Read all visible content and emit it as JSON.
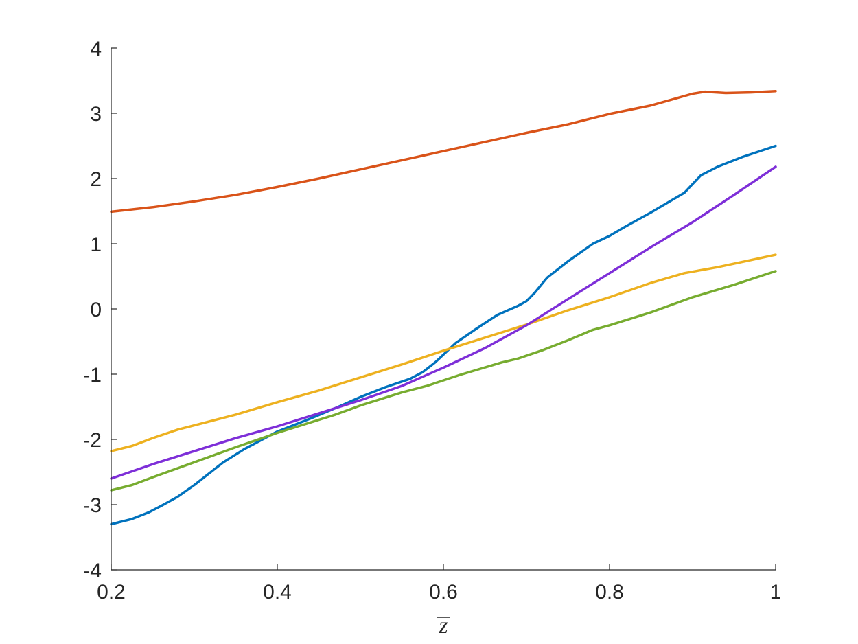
{
  "chart_data": {
    "type": "line",
    "xlabel": "z",
    "ylabel": "",
    "xlim": [
      0.2,
      1
    ],
    "ylim": [
      -4,
      4
    ],
    "xticks": [
      "0.2",
      "0.4",
      "0.6",
      "0.8",
      "1"
    ],
    "yticks": [
      "4",
      "3",
      "2",
      "1",
      "0",
      "-1",
      "-2",
      "-3",
      "-4"
    ],
    "grid": false,
    "series": [
      {
        "color": "#0072BD",
        "x": [
          0.2,
          0.225,
          0.245,
          0.26,
          0.28,
          0.3,
          0.335,
          0.36,
          0.4,
          0.44,
          0.47,
          0.5,
          0.53,
          0.56,
          0.575,
          0.59,
          0.615,
          0.64,
          0.665,
          0.69,
          0.7,
          0.71,
          0.725,
          0.75,
          0.78,
          0.8,
          0.82,
          0.85,
          0.89,
          0.91,
          0.93,
          0.96,
          1.0
        ],
        "values": [
          -3.3,
          -3.22,
          -3.12,
          -3.02,
          -2.88,
          -2.7,
          -2.35,
          -2.15,
          -1.88,
          -1.68,
          -1.52,
          -1.35,
          -1.2,
          -1.07,
          -0.97,
          -0.82,
          -0.52,
          -0.3,
          -0.09,
          0.05,
          0.12,
          0.25,
          0.48,
          0.73,
          1.0,
          1.12,
          1.27,
          1.48,
          1.78,
          2.05,
          2.18,
          2.33,
          2.5
        ]
      },
      {
        "color": "#D95319",
        "x": [
          0.2,
          0.25,
          0.3,
          0.35,
          0.4,
          0.45,
          0.5,
          0.55,
          0.6,
          0.65,
          0.7,
          0.75,
          0.8,
          0.85,
          0.9,
          0.915,
          0.94,
          0.97,
          1.0
        ],
        "values": [
          1.49,
          1.56,
          1.65,
          1.75,
          1.87,
          2.0,
          2.14,
          2.28,
          2.42,
          2.56,
          2.7,
          2.83,
          2.99,
          3.12,
          3.3,
          3.33,
          3.31,
          3.32,
          3.34
        ]
      },
      {
        "color": "#EDB120",
        "x": [
          0.2,
          0.225,
          0.25,
          0.28,
          0.35,
          0.4,
          0.45,
          0.5,
          0.55,
          0.6,
          0.65,
          0.7,
          0.75,
          0.8,
          0.85,
          0.89,
          0.93,
          1.0
        ],
        "values": [
          -2.18,
          -2.1,
          -1.98,
          -1.85,
          -1.62,
          -1.43,
          -1.25,
          -1.05,
          -0.85,
          -0.64,
          -0.44,
          -0.24,
          -0.02,
          0.18,
          0.4,
          0.55,
          0.64,
          0.83
        ]
      },
      {
        "color": "#77AC30",
        "x": [
          0.2,
          0.225,
          0.25,
          0.3,
          0.35,
          0.4,
          0.47,
          0.5,
          0.55,
          0.58,
          0.62,
          0.67,
          0.69,
          0.72,
          0.75,
          0.78,
          0.8,
          0.85,
          0.9,
          0.95,
          1.0
        ],
        "values": [
          -2.78,
          -2.7,
          -2.58,
          -2.35,
          -2.12,
          -1.9,
          -1.62,
          -1.48,
          -1.28,
          -1.18,
          -1.01,
          -0.82,
          -0.76,
          -0.63,
          -0.48,
          -0.32,
          -0.25,
          -0.05,
          0.18,
          0.37,
          0.58
        ]
      },
      {
        "color": "#7E2FD8",
        "x": [
          0.2,
          0.25,
          0.3,
          0.35,
          0.4,
          0.45,
          0.5,
          0.55,
          0.6,
          0.65,
          0.7,
          0.75,
          0.8,
          0.85,
          0.9,
          0.95,
          1.0
        ],
        "values": [
          -2.6,
          -2.38,
          -2.18,
          -1.98,
          -1.8,
          -1.6,
          -1.4,
          -1.18,
          -0.9,
          -0.6,
          -0.25,
          0.15,
          0.55,
          0.95,
          1.33,
          1.75,
          2.18
        ]
      }
    ]
  }
}
